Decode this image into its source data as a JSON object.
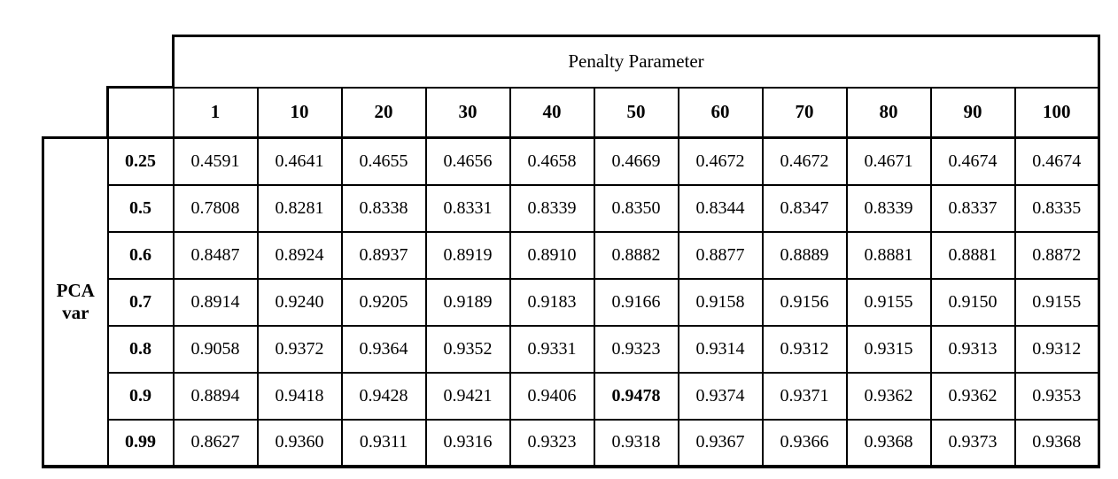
{
  "table": {
    "banner_label": "Penalty Parameter",
    "row_group_label_lines": [
      "PCA",
      "var"
    ],
    "column_headers": [
      "1",
      "10",
      "20",
      "30",
      "40",
      "50",
      "60",
      "70",
      "80",
      "90",
      "100"
    ],
    "rows": [
      {
        "label": "0.25",
        "values": [
          "0.4591",
          "0.4641",
          "0.4655",
          "0.4656",
          "0.4658",
          "0.4669",
          "0.4672",
          "0.4672",
          "0.4671",
          "0.4674",
          "0.4674"
        ]
      },
      {
        "label": "0.5",
        "values": [
          "0.7808",
          "0.8281",
          "0.8338",
          "0.8331",
          "0.8339",
          "0.8350",
          "0.8344",
          "0.8347",
          "0.8339",
          "0.8337",
          "0.8335"
        ]
      },
      {
        "label": "0.6",
        "values": [
          "0.8487",
          "0.8924",
          "0.8937",
          "0.8919",
          "0.8910",
          "0.8882",
          "0.8877",
          "0.8889",
          "0.8881",
          "0.8881",
          "0.8872"
        ]
      },
      {
        "label": "0.7",
        "values": [
          "0.8914",
          "0.9240",
          "0.9205",
          "0.9189",
          "0.9183",
          "0.9166",
          "0.9158",
          "0.9156",
          "0.9155",
          "0.9150",
          "0.9155"
        ]
      },
      {
        "label": "0.8",
        "values": [
          "0.9058",
          "0.9372",
          "0.9364",
          "0.9352",
          "0.9331",
          "0.9323",
          "0.9314",
          "0.9312",
          "0.9315",
          "0.9313",
          "0.9312"
        ]
      },
      {
        "label": "0.9",
        "values": [
          "0.8894",
          "0.9418",
          "0.9428",
          "0.9421",
          "0.9406",
          "0.9478",
          "0.9374",
          "0.9371",
          "0.9362",
          "0.9362",
          "0.9353"
        ]
      },
      {
        "label": "0.99",
        "values": [
          "0.8627",
          "0.9360",
          "0.9311",
          "0.9316",
          "0.9323",
          "0.9318",
          "0.9367",
          "0.9366",
          "0.9368",
          "0.9373",
          "0.9368"
        ]
      }
    ],
    "bold_cell": {
      "row_index": 5,
      "col_index": 5
    }
  },
  "colors": {
    "background": "#ffffff",
    "border": "#000000",
    "text": "#000000"
  },
  "chart_data": {
    "type": "table",
    "title": "Penalty Parameter",
    "col_variable": "Penalty Parameter",
    "row_variable": "PCA var",
    "columns": [
      1,
      10,
      20,
      30,
      40,
      50,
      60,
      70,
      80,
      90,
      100
    ],
    "row_labels": [
      0.25,
      0.5,
      0.6,
      0.7,
      0.8,
      0.9,
      0.99
    ],
    "values": [
      [
        0.4591,
        0.4641,
        0.4655,
        0.4656,
        0.4658,
        0.4669,
        0.4672,
        0.4672,
        0.4671,
        0.4674,
        0.4674
      ],
      [
        0.7808,
        0.8281,
        0.8338,
        0.8331,
        0.8339,
        0.835,
        0.8344,
        0.8347,
        0.8339,
        0.8337,
        0.8335
      ],
      [
        0.8487,
        0.8924,
        0.8937,
        0.8919,
        0.891,
        0.8882,
        0.8877,
        0.8889,
        0.8881,
        0.8881,
        0.8872
      ],
      [
        0.8914,
        0.924,
        0.9205,
        0.9189,
        0.9183,
        0.9166,
        0.9158,
        0.9156,
        0.9155,
        0.915,
        0.9155
      ],
      [
        0.9058,
        0.9372,
        0.9364,
        0.9352,
        0.9331,
        0.9323,
        0.9314,
        0.9312,
        0.9315,
        0.9313,
        0.9312
      ],
      [
        0.8894,
        0.9418,
        0.9428,
        0.9421,
        0.9406,
        0.9478,
        0.9374,
        0.9371,
        0.9362,
        0.9362,
        0.9353
      ],
      [
        0.8627,
        0.936,
        0.9311,
        0.9316,
        0.9323,
        0.9318,
        0.9367,
        0.9366,
        0.9368,
        0.9373,
        0.9368
      ]
    ],
    "highlighted_value": {
      "row": 0.9,
      "column": 50,
      "value": 0.9478,
      "style": "bold"
    }
  }
}
